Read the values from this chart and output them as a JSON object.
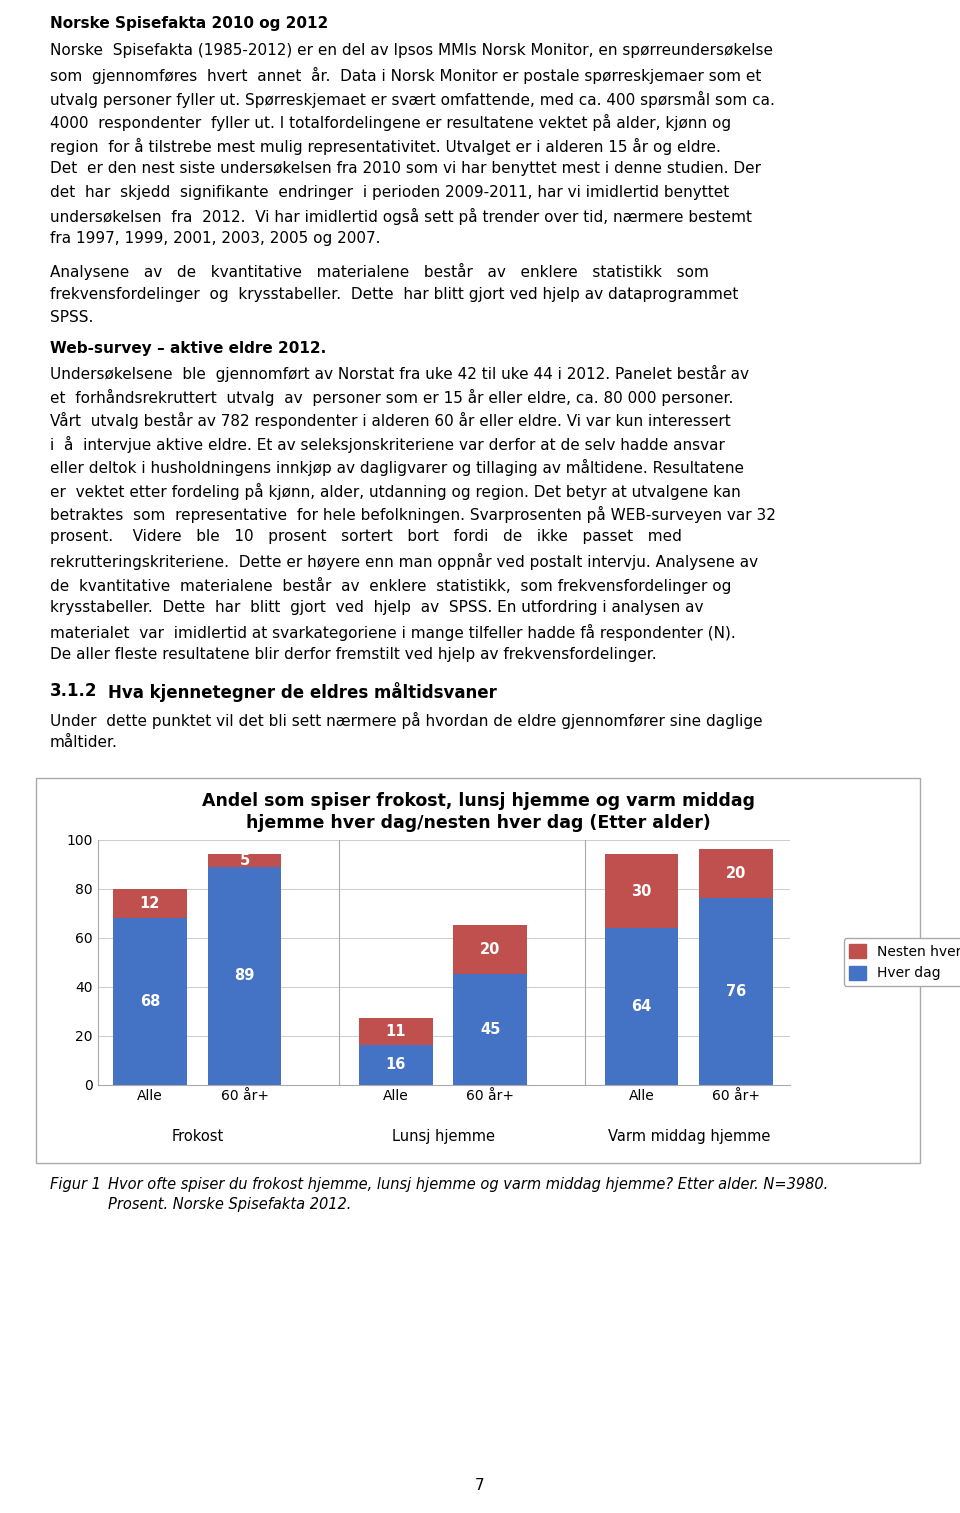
{
  "title_line1": "Andel som spiser frokost, lunsj hjemme og varm middag",
  "title_line2": "hjemme hver dag/nesten hver dag (Etter alder)",
  "groups": [
    "Frokost",
    "Lunsj hjemme",
    "Varm middag hjemme"
  ],
  "subgroups": [
    "Alle",
    "60 år+"
  ],
  "hver_dag": [
    68,
    89,
    16,
    45,
    64,
    76
  ],
  "nesten_hver_dag": [
    12,
    5,
    11,
    20,
    30,
    20
  ],
  "bar_color_hver_dag": "#4472C4",
  "bar_color_nesten": "#C0504D",
  "legend_labels": [
    "Nesten hver dag",
    "Hver dag"
  ],
  "page_number": "7",
  "figcaption_label": "Figur 1",
  "figcaption_text": "Hvor ofte spiser du frokost hjemme, lunsj hjemme og varm middag hjemme? Etter alder. N=3980.\nProsent. Norske Spisefakta 2012.",
  "heading1": "Norske Spisefakta 2010 og 2012",
  "para1": "Norske Spisefakta (1985-2012) er en del av Ipsos MMIs Norsk Monitor, en spørreundersøkelse som gjennomføres hvert annet år. Data i Norsk Monitor er postale spørreskjemaer som et utvalg personer fyller ut. Spørreskjemaet er svært omfattende, med ca. 400 spørsmål som ca. 4000 respondenter fyller ut. I totalfordelingene er resultatene vektet på alder, kjønn og region for å tilstrebe mest mulig representativitet. Utvalget er i alderen 15 år og eldre. Det er den nest siste undersøkelsen fra 2010 som vi har benyttet mest i denne studien. Der det har skjedd signifikante endringer i perioden 2009-2011, har vi imidlertid benyttet undersøkelsen fra 2012. Vi har imidlertid også sett på trender over tid, nærmere bestemt fra 1997, 1999, 2001, 2003, 2005 og 2007.",
  "para2": "Analysene av de kvantitative materialene består av enklere statistikk som frekvensfordelinger og krysstabeller. Dette har blitt gjort ved hjelp av dataprogrammet SPSS.",
  "heading2": "Web-survey – aktive eldre 2012.",
  "para3": "Undersøkelsene ble gjennomført av Norstat fra uke 42 til uke 44 i 2012. Panelet består av et forhåndsrekruttert utvalg av personer som er 15 år eller eldre, ca. 80 000 personer. Vårt utvalg består av 782 respondenter i alderen 60 år eller eldre. Vi var kun interessert i å intervjue aktive eldre. Et av seleksjonskriteriene var derfor at de selv hadde ansvar eller deltok i husholdningens innkjøp av dagligvarer og tillaging av måltidene. Resultatene er vektet etter fordeling på kjønn, alder, utdanning og region. Det betyr at utvalgene kan betraktes som representative for hele befolkningen. Svarprosenten på WEB-surveyen var 32 prosent. Videre ble 10 prosent sortert bort fordi de ikke passet med rekrutteringskriteriene.  Dette er høyere enn man oppnår ved postalt intervju. Analysene av de kvantitative materialene består av enklere statistikk, som frekvensfordelinger og krysstabeller. Dette har blitt gjort ved hjelp av SPSS. En utfordring i analysen av materialet var imidlertid at svarkategoriene i mange tilfeller hadde få respondenter (N). De aller fleste resultatene blir derfor fremstilt ved hjelp av frekvensfordelinger.",
  "section_num": "3.1.2",
  "section_title": "Hva kjennetegner de eldres måltidsvaner",
  "para4": "Under dette punktet vil det bli sett nærmere på hvordan de eldre gjennomfører sine daglige måltider."
}
